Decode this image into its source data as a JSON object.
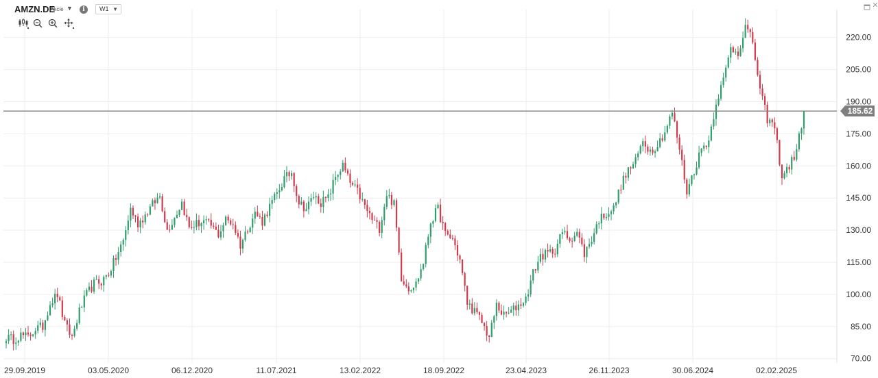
{
  "header": {
    "symbol": "AMZN.DE",
    "symbol_type": "Akcie",
    "interval": "W1",
    "info_glyph": "i",
    "close_glyph": "✕"
  },
  "colors": {
    "up": "#2e9e6b",
    "down": "#d23a4c",
    "price_line": "#7f7f7f",
    "price_label_bg": "#7f7f7f",
    "grid": "#eeeeee"
  },
  "chart_data": {
    "type": "candlestick",
    "symbol": "AMZN.DE",
    "timeframe": "W1",
    "current_price": "185.62",
    "ylim": [
      68,
      233
    ],
    "yticks": [
      "70.00",
      "85.00",
      "100.00",
      "115.00",
      "130.00",
      "145.00",
      "160.00",
      "175.00",
      "190.00",
      "205.00",
      "220.00"
    ],
    "x_labels": [
      "29.09.2019",
      "03.05.2020",
      "06.12.2020",
      "11.07.2021",
      "13.02.2022",
      "18.09.2022",
      "23.04.2023",
      "26.11.2023",
      "30.06.2024",
      "02.02.2025"
    ],
    "grid": true,
    "points": [
      {
        "date": "29.09.2019",
        "close": 80
      },
      {
        "date": "20.10.2019",
        "close": 79
      },
      {
        "date": "10.11.2019",
        "close": 81
      },
      {
        "date": "01.12.2019",
        "close": 80
      },
      {
        "date": "22.12.2019",
        "close": 84
      },
      {
        "date": "12.01.2020",
        "close": 85
      },
      {
        "date": "02.02.2020",
        "close": 96
      },
      {
        "date": "16.02.2020",
        "close": 100
      },
      {
        "date": "01.03.2020",
        "close": 86
      },
      {
        "date": "15.03.2020",
        "close": 80
      },
      {
        "date": "29.03.2020",
        "close": 92
      },
      {
        "date": "12.04.2020",
        "close": 100
      },
      {
        "date": "26.04.2020",
        "close": 105
      },
      {
        "date": "03.05.2020",
        "close": 106
      },
      {
        "date": "24.05.2020",
        "close": 110
      },
      {
        "date": "07.06.2020",
        "close": 117
      },
      {
        "date": "21.06.2020",
        "close": 125
      },
      {
        "date": "05.07.2020",
        "close": 140
      },
      {
        "date": "19.07.2020",
        "close": 133
      },
      {
        "date": "02.08.2020",
        "close": 137
      },
      {
        "date": "16.08.2020",
        "close": 142
      },
      {
        "date": "30.08.2020",
        "close": 146
      },
      {
        "date": "13.09.2020",
        "close": 130
      },
      {
        "date": "27.09.2020",
        "close": 136
      },
      {
        "date": "11.10.2020",
        "close": 143
      },
      {
        "date": "25.10.2020",
        "close": 131
      },
      {
        "date": "08.11.2020",
        "close": 133
      },
      {
        "date": "22.11.2020",
        "close": 134
      },
      {
        "date": "06.12.2020",
        "close": 132
      },
      {
        "date": "27.12.2020",
        "close": 128
      },
      {
        "date": "17.01.2021",
        "close": 135
      },
      {
        "date": "07.02.2021",
        "close": 133
      },
      {
        "date": "28.02.2021",
        "close": 123
      },
      {
        "date": "21.03.2021",
        "close": 131
      },
      {
        "date": "11.04.2021",
        "close": 138
      },
      {
        "date": "02.05.2021",
        "close": 134
      },
      {
        "date": "23.05.2021",
        "close": 141
      },
      {
        "date": "13.06.2021",
        "close": 147
      },
      {
        "date": "27.06.2021",
        "close": 154
      },
      {
        "date": "11.07.2021",
        "close": 157
      },
      {
        "date": "25.07.2021",
        "close": 143
      },
      {
        "date": "15.08.2021",
        "close": 140
      },
      {
        "date": "05.09.2021",
        "close": 146
      },
      {
        "date": "26.09.2021",
        "close": 143
      },
      {
        "date": "17.10.2021",
        "close": 145
      },
      {
        "date": "07.11.2021",
        "close": 155
      },
      {
        "date": "28.11.2021",
        "close": 160
      },
      {
        "date": "19.12.2021",
        "close": 152
      },
      {
        "date": "09.01.2022",
        "close": 148
      },
      {
        "date": "30.01.2022",
        "close": 141
      },
      {
        "date": "13.02.2022",
        "close": 135
      },
      {
        "date": "06.03.2022",
        "close": 131
      },
      {
        "date": "27.03.2022",
        "close": 147
      },
      {
        "date": "17.04.2022",
        "close": 142
      },
      {
        "date": "08.05.2022",
        "close": 108
      },
      {
        "date": "29.05.2022",
        "close": 103
      },
      {
        "date": "19.06.2022",
        "close": 105
      },
      {
        "date": "10.07.2022",
        "close": 115
      },
      {
        "date": "31.07.2022",
        "close": 134
      },
      {
        "date": "21.08.2022",
        "close": 140
      },
      {
        "date": "11.09.2022",
        "close": 128
      },
      {
        "date": "18.09.2022",
        "close": 126
      },
      {
        "date": "09.10.2022",
        "close": 116
      },
      {
        "date": "30.10.2022",
        "close": 96
      },
      {
        "date": "20.11.2022",
        "close": 92
      },
      {
        "date": "11.12.2022",
        "close": 87
      },
      {
        "date": "01.01.2023",
        "close": 80
      },
      {
        "date": "22.01.2023",
        "close": 95
      },
      {
        "date": "12.02.2023",
        "close": 90
      },
      {
        "date": "05.03.2023",
        "close": 92
      },
      {
        "date": "26.03.2023",
        "close": 95
      },
      {
        "date": "23.04.2023",
        "close": 98
      },
      {
        "date": "14.05.2023",
        "close": 110
      },
      {
        "date": "04.06.2023",
        "close": 118
      },
      {
        "date": "25.06.2023",
        "close": 119
      },
      {
        "date": "16.07.2023",
        "close": 121
      },
      {
        "date": "06.08.2023",
        "close": 129
      },
      {
        "date": "27.08.2023",
        "close": 126
      },
      {
        "date": "17.09.2023",
        "close": 129
      },
      {
        "date": "08.10.2023",
        "close": 119
      },
      {
        "date": "29.10.2023",
        "close": 126
      },
      {
        "date": "26.11.2023",
        "close": 135
      },
      {
        "date": "17.12.2023",
        "close": 138
      },
      {
        "date": "07.01.2024",
        "close": 140
      },
      {
        "date": "28.01.2024",
        "close": 151
      },
      {
        "date": "18.02.2024",
        "close": 158
      },
      {
        "date": "10.03.2024",
        "close": 162
      },
      {
        "date": "31.03.2024",
        "close": 172
      },
      {
        "date": "21.04.2024",
        "close": 167
      },
      {
        "date": "12.05.2024",
        "close": 170
      },
      {
        "date": "02.06.2024",
        "close": 176
      },
      {
        "date": "30.06.2024",
        "close": 185
      },
      {
        "date": "21.07.2024",
        "close": 168
      },
      {
        "date": "04.08.2024",
        "close": 148
      },
      {
        "date": "25.08.2024",
        "close": 158
      },
      {
        "date": "15.09.2024",
        "close": 168
      },
      {
        "date": "06.10.2024",
        "close": 172
      },
      {
        "date": "27.10.2024",
        "close": 190
      },
      {
        "date": "17.11.2024",
        "close": 200
      },
      {
        "date": "08.12.2024",
        "close": 215
      },
      {
        "date": "29.12.2024",
        "close": 213
      },
      {
        "date": "19.01.2025",
        "close": 225
      },
      {
        "date": "02.02.2025",
        "close": 218
      },
      {
        "date": "23.02.2025",
        "close": 195
      },
      {
        "date": "09.03.2025",
        "close": 182
      },
      {
        "date": "23.03.2025",
        "close": 178
      },
      {
        "date": "06.04.2025",
        "close": 155
      },
      {
        "date": "20.04.2025",
        "close": 160
      },
      {
        "date": "04.05.2025",
        "close": 167
      },
      {
        "date": "11.05.2025",
        "close": 185.62
      }
    ]
  }
}
